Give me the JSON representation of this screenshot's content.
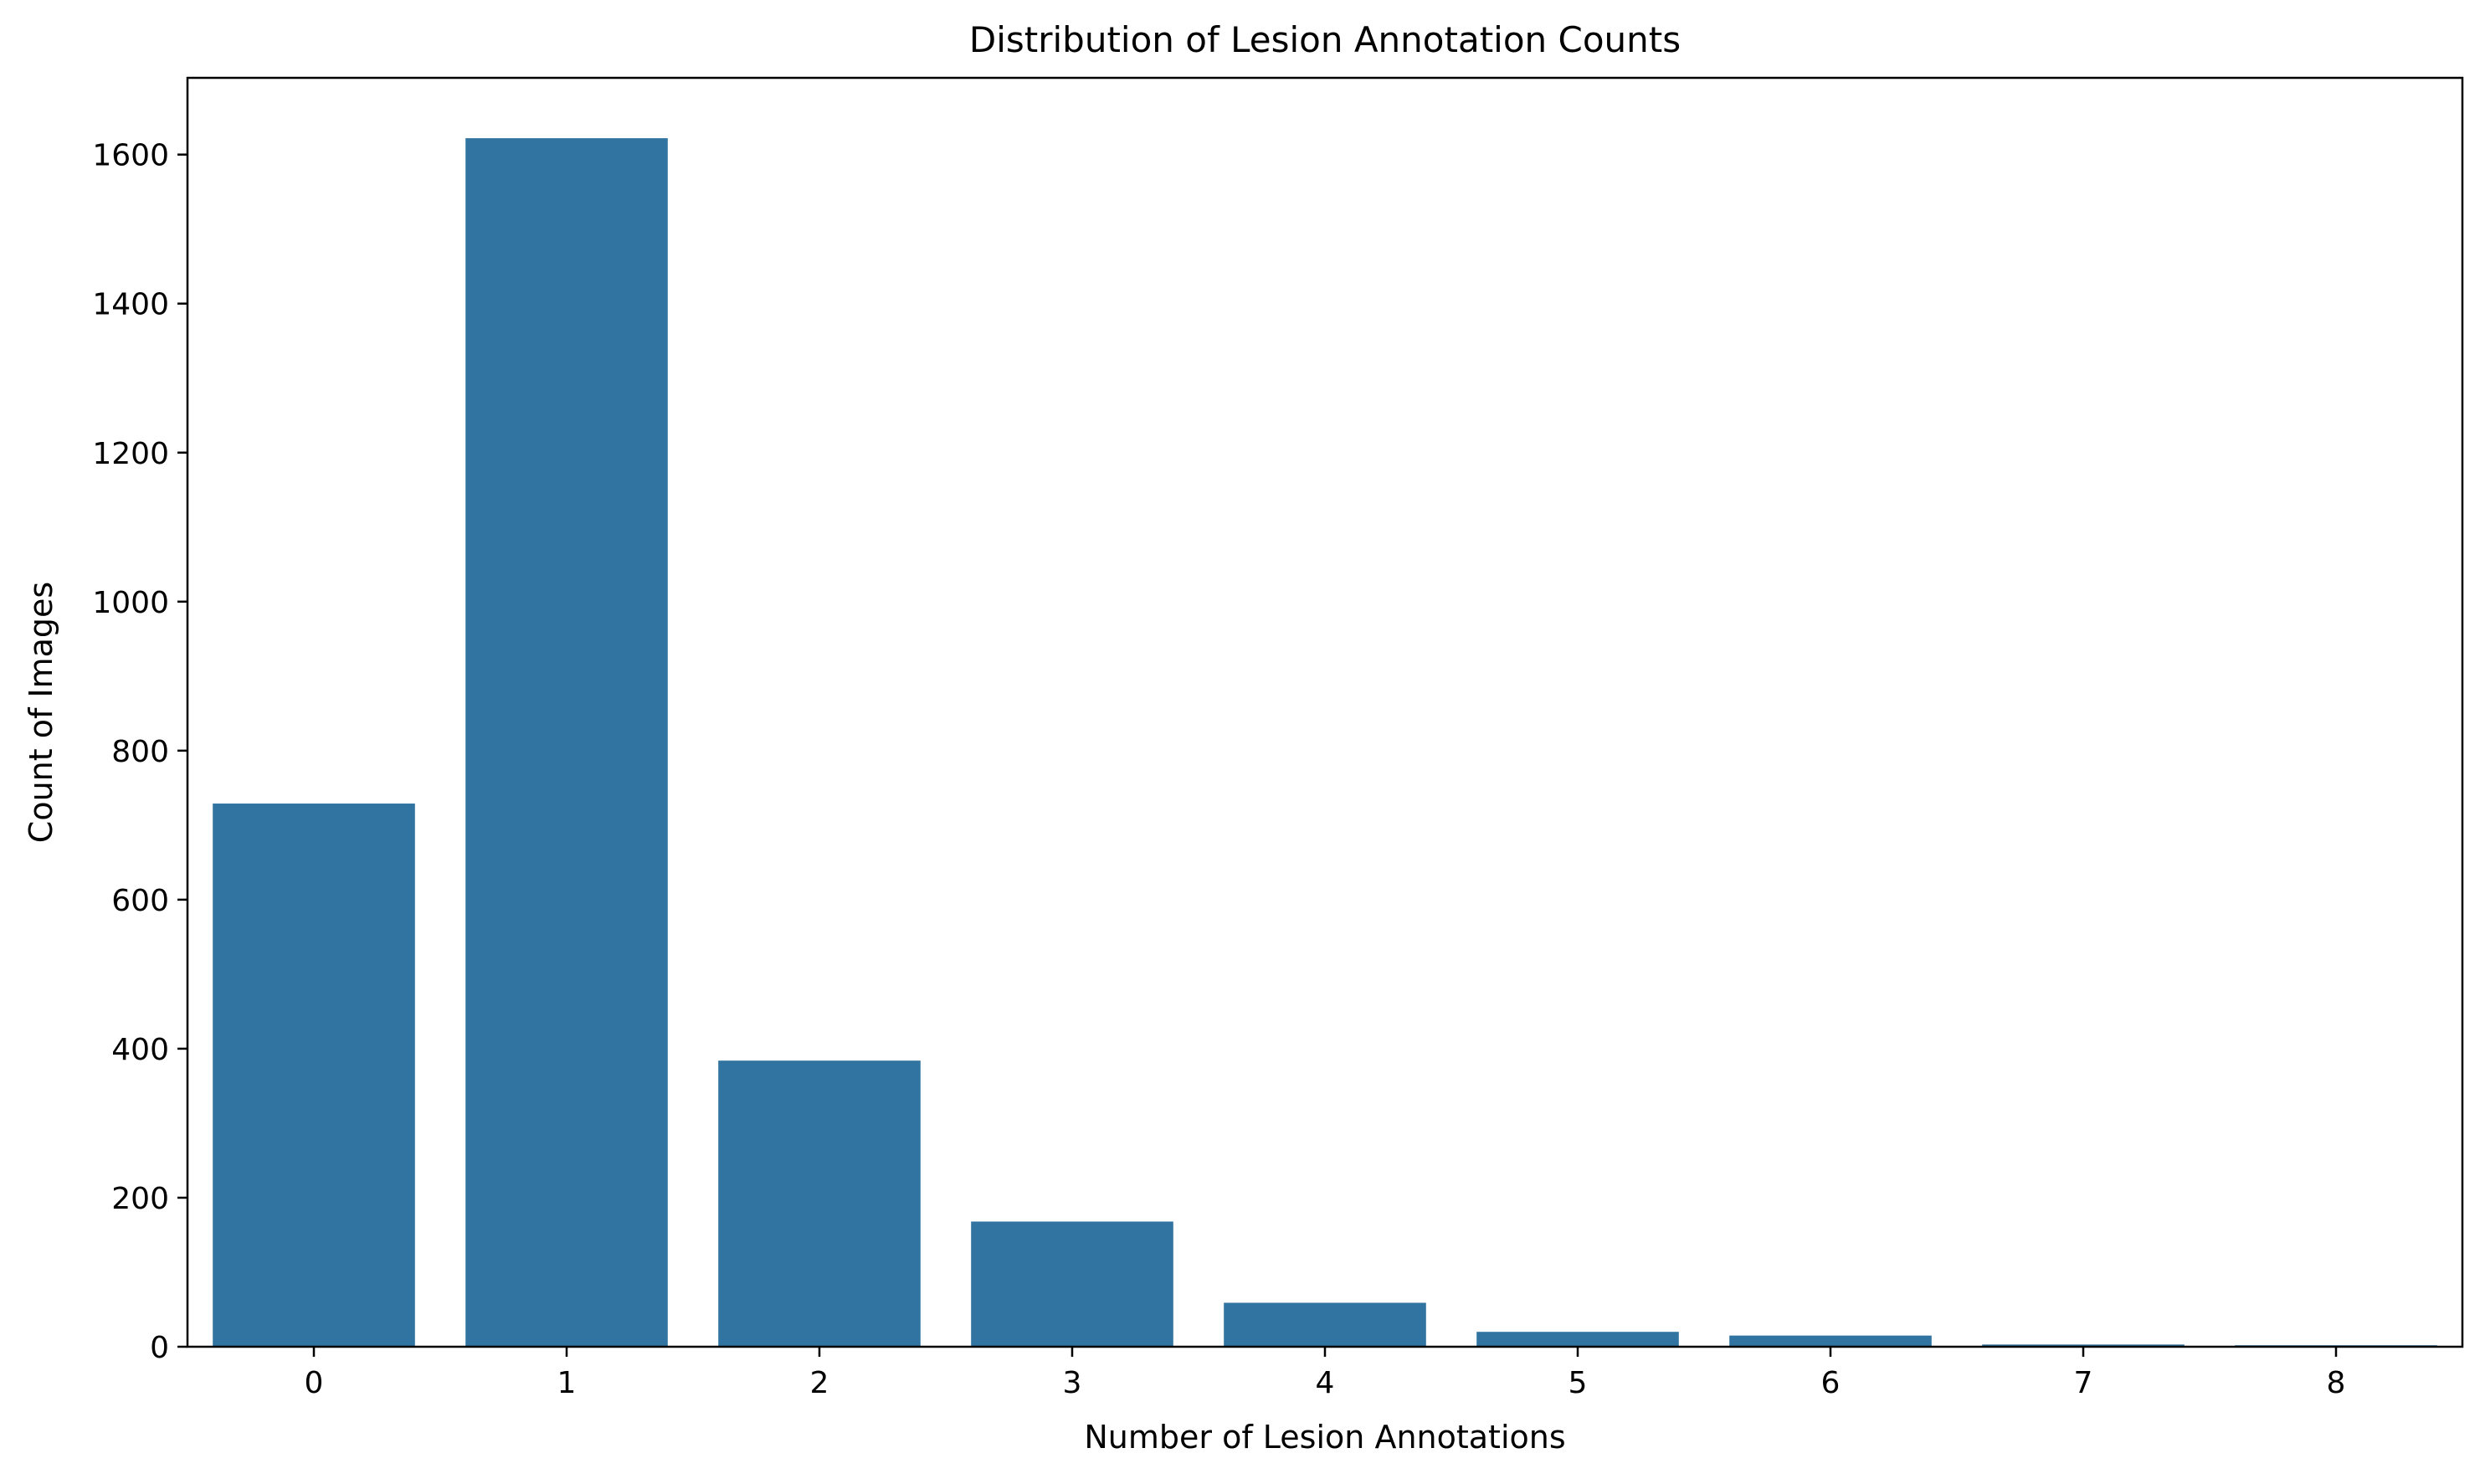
{
  "chart_data": {
    "type": "bar",
    "title": "Distribution of Lesion Annotation Counts",
    "xlabel": "Number of Lesion Annotations",
    "ylabel": "Count of Images",
    "categories": [
      "0",
      "1",
      "2",
      "3",
      "4",
      "5",
      "6",
      "7",
      "8"
    ],
    "values": [
      729,
      1622,
      384,
      168,
      59,
      20,
      15,
      3,
      2
    ],
    "ylim": [
      0,
      1703
    ],
    "yticks": [
      0,
      200,
      400,
      600,
      800,
      1000,
      1200,
      1400,
      1600
    ],
    "bar_color": "#3274a1",
    "grid": false,
    "legend": "none"
  }
}
